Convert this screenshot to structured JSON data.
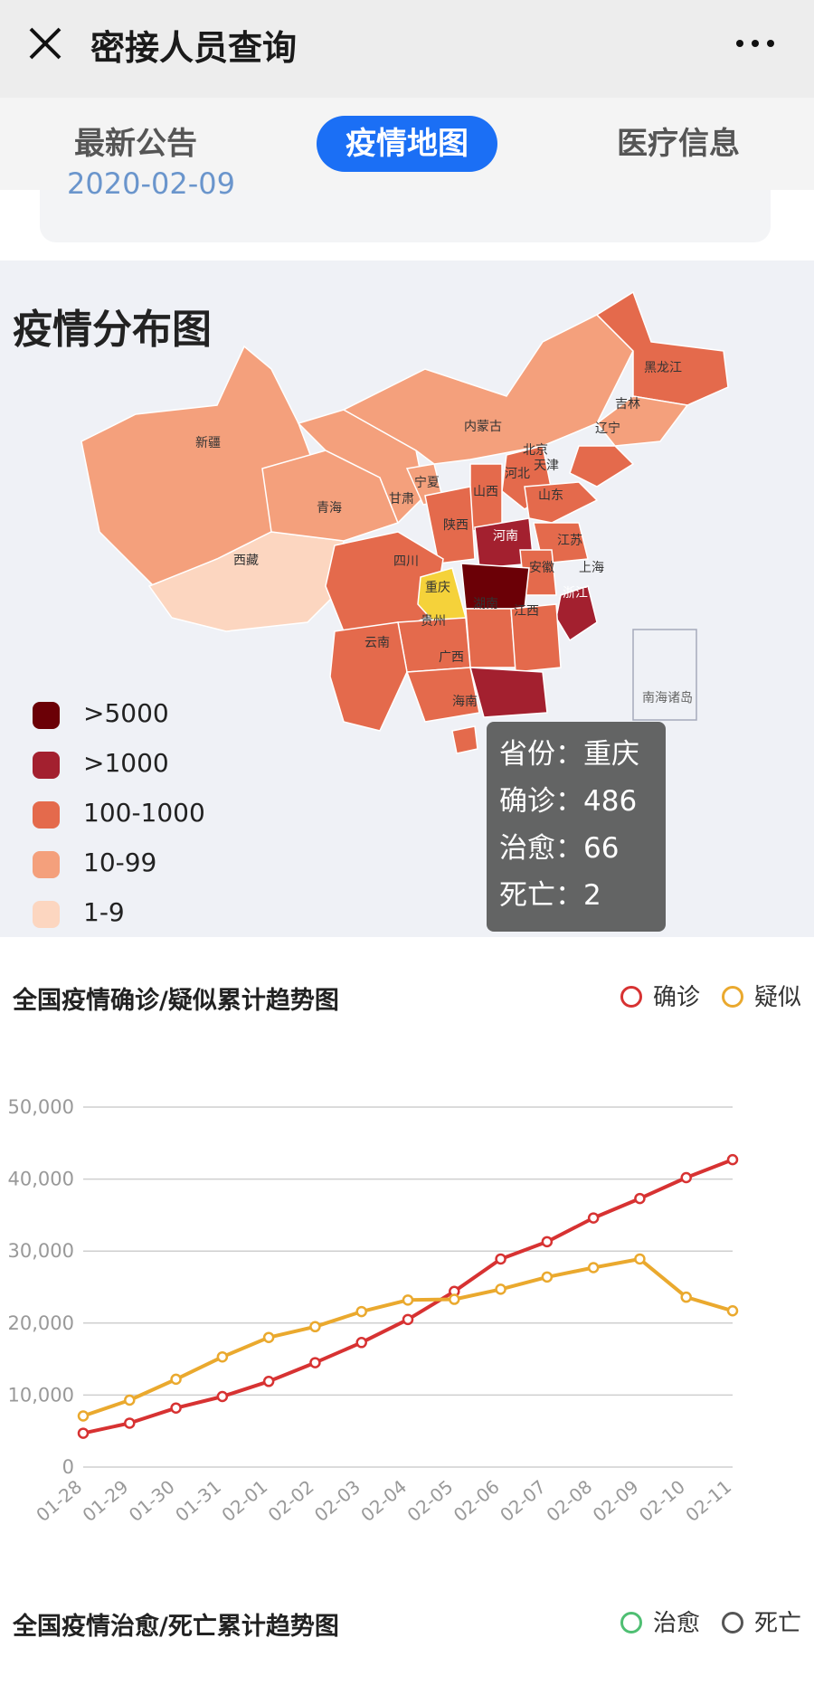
{
  "header": {
    "title": "密接人员查询"
  },
  "tabs": [
    {
      "label": "最新公告",
      "active": false
    },
    {
      "label": "疫情地图",
      "active": true
    },
    {
      "label": "医疗信息",
      "active": false
    }
  ],
  "notice": {
    "date_partial": "2020-02-09"
  },
  "map": {
    "title": "疫情分布图",
    "legend": [
      {
        "label": ">5000",
        "color": "#6b0006"
      },
      {
        "label": ">1000",
        "color": "#a3202f"
      },
      {
        "label": "100-1000",
        "color": "#e46a4c"
      },
      {
        "label": "10-99",
        "color": "#f4a07c"
      },
      {
        "label": "1-9",
        "color": "#fcd6c0"
      }
    ],
    "province_labels": [
      "黑龙江",
      "吉林",
      "辽宁",
      "内蒙古",
      "北京",
      "天津",
      "河北",
      "山西",
      "山东",
      "新疆",
      "青海",
      "甘肃",
      "宁夏",
      "陕西",
      "河南",
      "江苏",
      "安徽",
      "上海",
      "西藏",
      "四川",
      "重庆",
      "湖南",
      "浙江",
      "江西",
      "云南",
      "贵州",
      "广西",
      "海南",
      "南海诸岛"
    ],
    "tooltip": {
      "province": "省份：重庆",
      "confirmed": "确诊：486",
      "cured": "治愈：66",
      "deaths": "死亡：2"
    }
  },
  "chart_data": [
    {
      "type": "line",
      "title": "全国疫情确诊/疑似累计趋势图",
      "categories": [
        "01-28",
        "01-29",
        "01-30",
        "01-31",
        "02-01",
        "02-02",
        "02-03",
        "02-04",
        "02-05",
        "02-06",
        "02-07",
        "02-08",
        "02-09",
        "02-10",
        "02-11"
      ],
      "series": [
        {
          "name": "确诊",
          "color": "#d73232",
          "values": [
            4700,
            6100,
            8200,
            9800,
            11900,
            14500,
            17300,
            20500,
            24400,
            28900,
            31300,
            34600,
            37300,
            40200,
            42700
          ]
        },
        {
          "name": "疑似",
          "color": "#eaa92e",
          "values": [
            7100,
            9300,
            12200,
            15300,
            18000,
            19500,
            21600,
            23200,
            23300,
            24700,
            26400,
            27700,
            28900,
            23600,
            21700
          ]
        }
      ],
      "y_ticks": [
        "50,000",
        "40,000",
        "30,000",
        "20,000",
        "10,000",
        "0"
      ],
      "ylim": [
        0,
        50000
      ],
      "grid": true,
      "legend": "top-right"
    },
    {
      "type": "line",
      "title": "全国疫情治愈/死亡累计趋势图",
      "series": [
        {
          "name": "治愈",
          "color": "#4fbf73"
        },
        {
          "name": "死亡",
          "color": "#555555"
        }
      ],
      "legend": "top-right"
    }
  ]
}
